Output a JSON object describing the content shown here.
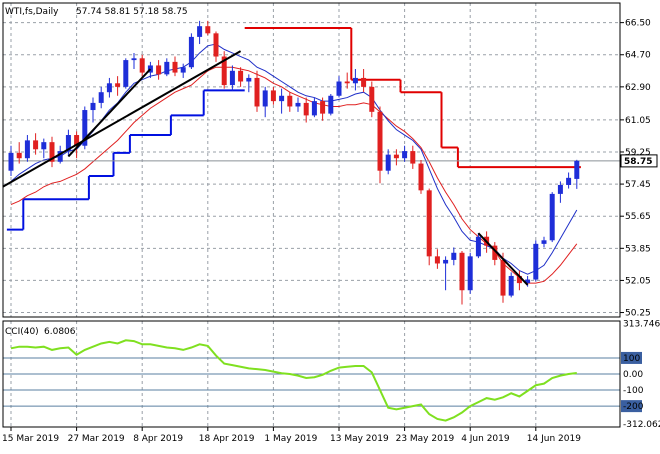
{
  "header": {
    "symbol": "WTI,fs,Daily",
    "ohlc": "57.74 58.81 57.18 58.75"
  },
  "colors": {
    "bull": "#1e2ed8",
    "bear": "#e02020",
    "ma_fast": "#2030c8",
    "ma_slow": "#e02020",
    "stop_upper": "#e00000",
    "stop_lower": "#0010e0",
    "trendline": "#000000",
    "cci": "#7fe020",
    "price_tag": "#ffffff",
    "grid": "#9aa0a8"
  },
  "chart_data": [
    {
      "type": "candlestick",
      "title": "WTI,fs,Daily",
      "ylim": [
        50.0,
        67.6
      ],
      "y_ticks": [
        "66.50",
        "64.70",
        "62.90",
        "61.05",
        "59.25",
        "57.45",
        "55.65",
        "53.85",
        "52.05",
        "50.25"
      ],
      "x_ticks": [
        "15 Mar 2019",
        "27 Mar 2019",
        "8 Apr 2019",
        "18 Apr 2019",
        "1 May 2019",
        "13 May 2019",
        "23 May 2019",
        "4 Jun 2019",
        "14 Jun 2019"
      ],
      "x_tick_index": [
        0,
        8,
        16,
        24,
        32,
        40,
        48,
        56,
        64
      ],
      "last_price": "58.75",
      "candles": [
        [
          58.2,
          59.6,
          57.9,
          59.2
        ],
        [
          59.2,
          59.8,
          58.6,
          58.9
        ],
        [
          58.9,
          60.2,
          58.7,
          59.9
        ],
        [
          59.9,
          60.3,
          59.1,
          59.4
        ],
        [
          59.4,
          60.0,
          58.9,
          59.8
        ],
        [
          59.8,
          60.1,
          58.4,
          58.7
        ],
        [
          58.7,
          59.6,
          58.6,
          59.3
        ],
        [
          59.3,
          60.5,
          59.0,
          60.2
        ],
        [
          60.2,
          60.4,
          58.9,
          59.6
        ],
        [
          59.6,
          61.8,
          59.4,
          61.6
        ],
        [
          61.6,
          62.3,
          60.9,
          62.0
        ],
        [
          62.0,
          62.9,
          61.7,
          62.6
        ],
        [
          62.6,
          63.4,
          62.3,
          63.1
        ],
        [
          63.1,
          63.5,
          62.4,
          62.9
        ],
        [
          62.9,
          64.5,
          62.8,
          64.4
        ],
        [
          64.4,
          64.8,
          63.9,
          64.5
        ],
        [
          64.5,
          64.7,
          63.5,
          63.7
        ],
        [
          63.7,
          64.3,
          63.4,
          64.1
        ],
        [
          64.1,
          64.4,
          63.3,
          63.6
        ],
        [
          63.6,
          64.5,
          63.5,
          64.3
        ],
        [
          64.3,
          64.6,
          63.5,
          63.7
        ],
        [
          63.7,
          64.2,
          63.4,
          64.0
        ],
        [
          64.0,
          65.9,
          63.9,
          65.7
        ],
        [
          65.7,
          66.6,
          65.3,
          66.3
        ],
        [
          66.3,
          66.6,
          65.8,
          65.9
        ],
        [
          65.9,
          66.0,
          64.3,
          64.6
        ],
        [
          64.6,
          64.9,
          62.8,
          63.0
        ],
        [
          63.0,
          64.1,
          62.7,
          63.8
        ],
        [
          63.8,
          64.0,
          62.9,
          63.2
        ],
        [
          63.2,
          63.6,
          62.6,
          63.4
        ],
        [
          63.4,
          63.8,
          61.5,
          61.8
        ],
        [
          61.8,
          62.9,
          61.2,
          62.7
        ],
        [
          62.7,
          62.9,
          61.9,
          62.1
        ],
        [
          62.1,
          62.8,
          61.4,
          62.4
        ],
        [
          62.4,
          62.6,
          61.5,
          61.8
        ],
        [
          61.8,
          62.3,
          61.5,
          62.0
        ],
        [
          62.0,
          62.3,
          60.9,
          61.3
        ],
        [
          61.3,
          62.3,
          61.2,
          62.1
        ],
        [
          62.1,
          62.3,
          61.0,
          61.4
        ],
        [
          61.4,
          62.5,
          61.3,
          62.4
        ],
        [
          62.4,
          63.5,
          62.3,
          63.2
        ],
        [
          63.2,
          63.7,
          62.8,
          63.1
        ],
        [
          63.1,
          63.9,
          62.7,
          63.4
        ],
        [
          63.4,
          63.9,
          62.6,
          62.9
        ],
        [
          62.9,
          63.2,
          61.2,
          61.5
        ],
        [
          61.5,
          61.8,
          57.5,
          58.2
        ],
        [
          58.2,
          59.4,
          58.0,
          59.1
        ],
        [
          59.1,
          59.4,
          58.5,
          58.9
        ],
        [
          58.9,
          59.6,
          58.7,
          59.3
        ],
        [
          59.3,
          59.6,
          58.3,
          58.6
        ],
        [
          58.6,
          58.8,
          56.9,
          57.1
        ],
        [
          57.1,
          57.2,
          52.9,
          53.4
        ],
        [
          53.4,
          53.8,
          52.7,
          53.0
        ],
        [
          53.0,
          53.4,
          51.5,
          53.2
        ],
        [
          53.2,
          53.9,
          52.9,
          53.6
        ],
        [
          53.6,
          53.7,
          50.7,
          51.5
        ],
        [
          51.5,
          53.6,
          51.3,
          53.4
        ],
        [
          53.4,
          54.7,
          53.3,
          54.5
        ],
        [
          54.5,
          54.8,
          53.6,
          54.0
        ],
        [
          54.0,
          54.2,
          52.9,
          53.2
        ],
        [
          53.2,
          53.6,
          50.8,
          51.2
        ],
        [
          51.2,
          52.5,
          51.1,
          52.3
        ],
        [
          52.3,
          52.6,
          51.5,
          51.9
        ],
        [
          51.9,
          52.3,
          51.7,
          52.1
        ],
        [
          52.1,
          54.3,
          52.0,
          54.1
        ],
        [
          54.1,
          54.5,
          53.9,
          54.3
        ],
        [
          54.3,
          57.0,
          54.2,
          56.9
        ],
        [
          56.9,
          57.6,
          56.4,
          57.4
        ],
        [
          57.4,
          58.1,
          57.2,
          57.8
        ],
        [
          57.74,
          58.81,
          57.18,
          58.75
        ]
      ],
      "ma_fast": [
        57.6,
        58.0,
        58.3,
        58.6,
        58.8,
        58.9,
        59.0,
        59.3,
        59.4,
        59.9,
        60.4,
        61.0,
        61.6,
        62.0,
        62.6,
        63.1,
        63.3,
        63.5,
        63.6,
        63.8,
        63.9,
        64.0,
        64.3,
        64.8,
        65.2,
        65.3,
        65.0,
        64.8,
        64.6,
        64.4,
        64.0,
        63.8,
        63.5,
        63.2,
        62.9,
        62.6,
        62.4,
        62.3,
        62.1,
        62.1,
        62.2,
        62.3,
        62.5,
        62.6,
        62.3,
        61.6,
        61.0,
        60.5,
        60.2,
        59.9,
        59.4,
        58.3,
        57.2,
        56.3,
        55.6,
        54.8,
        54.3,
        54.2,
        54.0,
        53.8,
        53.3,
        53.0,
        52.6,
        52.4,
        52.6,
        52.9,
        53.6,
        54.4,
        55.2,
        56.0
      ],
      "ma_slow": [
        56.3,
        56.5,
        56.8,
        57.0,
        57.3,
        57.5,
        57.6,
        57.8,
        58.0,
        58.3,
        58.7,
        59.1,
        59.5,
        59.9,
        60.4,
        60.9,
        61.3,
        61.7,
        62.0,
        62.3,
        62.6,
        62.8,
        63.0,
        63.4,
        63.8,
        64.0,
        64.0,
        64.0,
        63.9,
        63.8,
        63.6,
        63.4,
        63.1,
        62.9,
        62.6,
        62.4,
        62.2,
        62.0,
        61.9,
        61.8,
        61.8,
        61.9,
        61.9,
        62.0,
        61.9,
        61.5,
        61.1,
        60.7,
        60.4,
        60.0,
        59.5,
        58.7,
        57.8,
        57.0,
        56.3,
        55.5,
        54.9,
        54.5,
        54.1,
        53.7,
        53.0,
        52.6,
        52.2,
        51.9,
        51.9,
        52.0,
        52.4,
        52.9,
        53.5,
        54.1
      ],
      "stop_upper": [
        {
          "from": 29,
          "to": 41,
          "value": 66.2
        },
        {
          "from": 42,
          "to": 47,
          "value": 63.3
        },
        {
          "from": 48,
          "to": 52,
          "value": 62.6
        },
        {
          "from": 53,
          "to": 54,
          "value": 59.5
        },
        {
          "from": 55,
          "to": 69,
          "value": 58.4
        }
      ],
      "stop_lower": [
        {
          "from": 0,
          "to": 1,
          "value": 54.9
        },
        {
          "from": 2,
          "to": 9,
          "value": 56.6
        },
        {
          "from": 10,
          "to": 12,
          "value": 57.9
        },
        {
          "from": 13,
          "to": 14,
          "value": 59.2
        },
        {
          "from": 15,
          "to": 19,
          "value": 60.2
        },
        {
          "from": 20,
          "to": 23,
          "value": 61.3
        },
        {
          "from": 24,
          "to": 28,
          "value": 62.7
        }
      ],
      "trendlines": [
        {
          "x0": -1,
          "y0": 57.3,
          "x1": 28,
          "y1": 64.9
        },
        {
          "x0": 7,
          "y0": 59.0,
          "x1": 17,
          "y1": 63.9
        },
        {
          "x0": 57,
          "y0": 54.7,
          "x1": 63,
          "y1": 51.8
        }
      ]
    },
    {
      "type": "line",
      "title": "CCI(40)",
      "last_value": "6.0806",
      "ylim": [
        -330,
        330
      ],
      "y_ticks": [
        "313.746",
        "100",
        "0.00",
        "-100",
        "-200",
        "-312.062"
      ],
      "levels": [
        100,
        0,
        -100,
        -200
      ],
      "series": [
        {
          "name": "CCI(40)",
          "values": [
            160,
            170,
            170,
            165,
            170,
            150,
            160,
            165,
            120,
            150,
            170,
            190,
            200,
            190,
            210,
            205,
            185,
            185,
            175,
            165,
            160,
            150,
            165,
            185,
            175,
            115,
            65,
            55,
            45,
            35,
            30,
            25,
            15,
            5,
            0,
            -10,
            -25,
            -20,
            -5,
            20,
            40,
            45,
            50,
            50,
            10,
            -100,
            -210,
            -220,
            -210,
            -200,
            -190,
            -250,
            -280,
            -290,
            -270,
            -240,
            -200,
            -175,
            -150,
            -160,
            -145,
            -120,
            -140,
            -105,
            -70,
            -60,
            -25,
            -10,
            0,
            6.08
          ]
        }
      ]
    }
  ]
}
